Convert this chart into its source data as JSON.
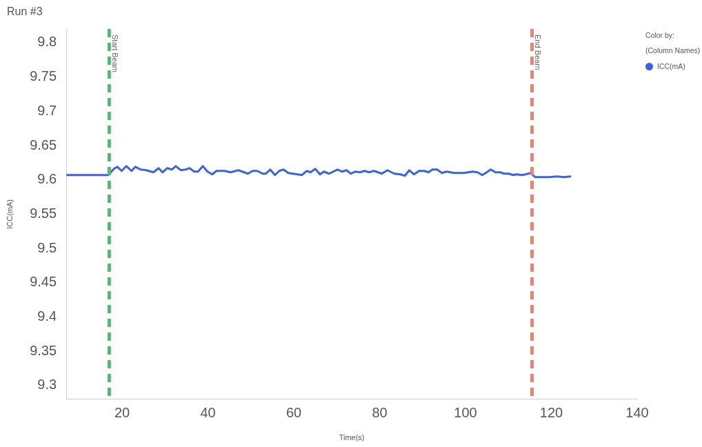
{
  "chart_data": {
    "type": "line",
    "title": "Run #3",
    "xlabel": "Time(s)",
    "ylabel": "ICC(mA)",
    "legend_title": "Color by:\n(Column Names)",
    "legend": "top right",
    "grid": false,
    "marker": "none",
    "line_style": "solid",
    "xlim": [
      7,
      140
    ],
    "xticks": [
      20,
      40,
      60,
      80,
      100,
      120,
      140
    ],
    "ylim": [
      9.28,
      9.82
    ],
    "yticks": [
      9.3,
      9.35,
      9.4,
      9.45,
      9.5,
      9.55,
      9.6,
      9.65,
      9.7,
      9.75,
      9.8
    ],
    "ref_lines": [
      {
        "axis": "x",
        "value": 17,
        "label": "Start Beam",
        "color": "#5bb57a",
        "line_style": "dashed"
      },
      {
        "axis": "x",
        "value": 115.5,
        "label": "End Beam",
        "color": "#fa7d68",
        "line_style": "dashed"
      }
    ],
    "series": [
      {
        "name": "ICC(mA)",
        "color": "#3b63dc",
        "x": [
          7,
          16.8,
          18.1,
          18.9,
          19.9,
          21,
          22.2,
          23.1,
          24.3,
          25.6,
          27.3,
          28.5,
          29.4,
          30.5,
          31.6,
          32.5,
          33.7,
          34.8,
          35.7,
          36.8,
          37.7,
          38.8,
          39.9,
          41,
          42,
          43.9,
          45.3,
          47.1,
          49.3,
          50.4,
          51.5,
          52.7,
          53.5,
          54.5,
          55.6,
          56.6,
          57.6,
          58.7,
          61.9,
          63,
          63.9,
          65,
          66.1,
          67,
          68.2,
          70.2,
          71.3,
          72.3,
          73.3,
          74.3,
          75.4,
          76.5,
          77.5,
          78.7,
          80.5,
          81.8,
          83.4,
          84.8,
          85.9,
          86.9,
          88,
          89.2,
          90.4,
          91.4,
          92.3,
          93.4,
          94.5,
          95.6,
          97.4,
          99.6,
          100.6,
          101.7,
          102.8,
          103.9,
          104.7,
          105.9,
          107,
          108.1,
          109,
          110.1,
          111.1,
          111.9,
          113.3,
          115.2,
          116.2,
          119.5,
          121.4,
          122.7,
          124.6
        ],
        "values": [
          9.607,
          9.607,
          9.616,
          9.619,
          9.613,
          9.62,
          9.613,
          9.619,
          9.615,
          9.614,
          9.611,
          9.617,
          9.611,
          9.617,
          9.615,
          9.62,
          9.614,
          9.615,
          9.617,
          9.612,
          9.612,
          9.62,
          9.612,
          9.608,
          9.613,
          9.613,
          9.611,
          9.614,
          9.609,
          9.613,
          9.613,
          9.609,
          9.609,
          9.615,
          9.607,
          9.613,
          9.615,
          9.61,
          9.607,
          9.613,
          9.611,
          9.616,
          9.608,
          9.612,
          9.609,
          9.615,
          9.612,
          9.614,
          9.609,
          9.612,
          9.611,
          9.613,
          9.611,
          9.613,
          9.609,
          9.614,
          9.609,
          9.608,
          9.606,
          9.614,
          9.608,
          9.613,
          9.613,
          9.611,
          9.615,
          9.615,
          9.61,
          9.612,
          9.61,
          9.61,
          9.611,
          9.612,
          9.611,
          9.607,
          9.61,
          9.615,
          9.611,
          9.611,
          9.609,
          9.609,
          9.607,
          9.608,
          9.607,
          9.61,
          9.604,
          9.604,
          9.605,
          9.604,
          9.605
        ]
      }
    ]
  }
}
